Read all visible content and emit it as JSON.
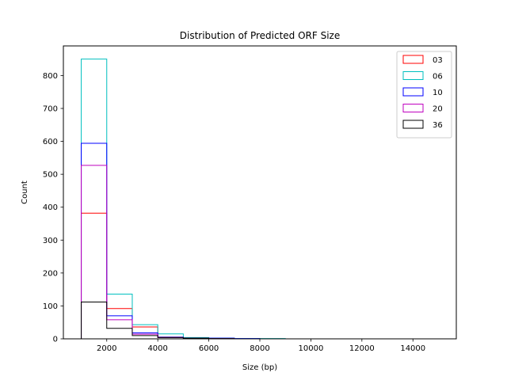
{
  "chart_data": {
    "type": "histogram",
    "title": "Distribution of Predicted ORF Size",
    "xlabel": "Size (bp)",
    "ylabel": "Count",
    "xlim": [
      300,
      15700
    ],
    "ylim": [
      0,
      890
    ],
    "x_ticks": [
      2000,
      4000,
      6000,
      8000,
      10000,
      12000,
      14000
    ],
    "y_ticks": [
      0,
      100,
      200,
      300,
      400,
      500,
      600,
      700,
      800
    ],
    "bin_edges": [
      1000,
      2000,
      3000,
      4000,
      5000,
      6000,
      7000,
      8000,
      9000,
      10000,
      11000,
      12000,
      13000,
      14000,
      15000
    ],
    "histtype": "step",
    "legend_position": "top-right",
    "grid": false,
    "series": [
      {
        "name": "03",
        "color": "#ff0000",
        "values": [
          382,
          92,
          36,
          5,
          3,
          1,
          0,
          0,
          0,
          0,
          0,
          0,
          0,
          0
        ]
      },
      {
        "name": "06",
        "color": "#00bfbf",
        "values": [
          850,
          136,
          43,
          15,
          4,
          2,
          1,
          1,
          0,
          0,
          0,
          0,
          0,
          0
        ]
      },
      {
        "name": "10",
        "color": "#0000ff",
        "values": [
          594,
          70,
          18,
          5,
          2,
          2,
          1,
          0,
          0,
          0,
          0,
          0,
          0,
          0
        ]
      },
      {
        "name": "20",
        "color": "#bf00bf",
        "values": [
          527,
          58,
          14,
          4,
          2,
          1,
          0,
          0,
          0,
          0,
          0,
          0,
          0,
          0
        ]
      },
      {
        "name": "36",
        "color": "#000000",
        "values": [
          112,
          32,
          10,
          4,
          2,
          1,
          0,
          0,
          0,
          0,
          0,
          0,
          0,
          0
        ]
      }
    ]
  }
}
